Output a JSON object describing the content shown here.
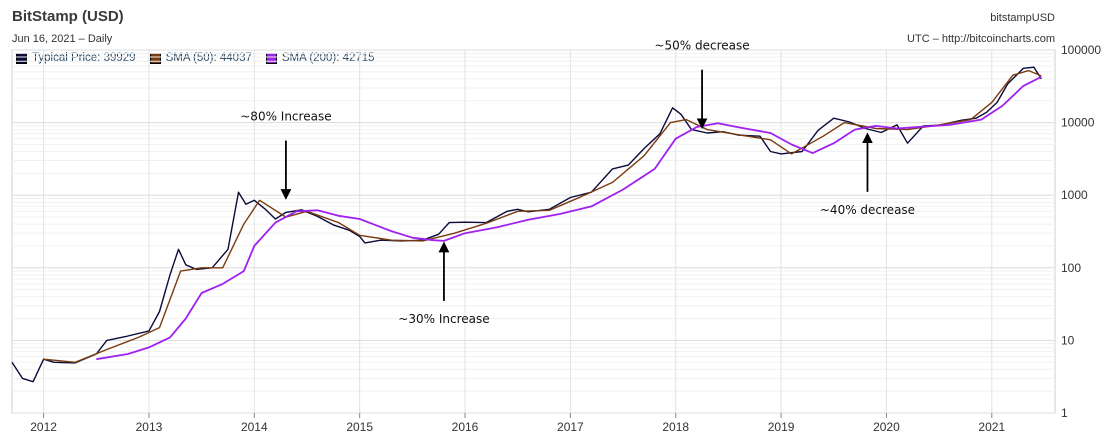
{
  "header": {
    "title": "BitStamp (USD)",
    "subtitle": "Jun 16, 2021  –  Daily",
    "source_name": "bitstampUSD",
    "source_url": "UTC – http://bitcoincharts.com"
  },
  "legend": [
    {
      "label": "Typical Price: 39929",
      "color": "#0b0b3b"
    },
    {
      "label": "SMA (50): 44037",
      "color": "#7a3a10"
    },
    {
      "label": "SMA (200): 42715",
      "color": "#a020f0"
    }
  ],
  "chart_data": {
    "type": "line",
    "title": "BitStamp (USD)",
    "y_scale": "log",
    "ylim": [
      1,
      100000
    ],
    "xlim": [
      2011.7,
      2021.6
    ],
    "y_ticks": [
      1,
      10,
      100,
      1000,
      10000,
      100000
    ],
    "y_tick_labels": [
      "1",
      "10",
      "100",
      "1000",
      "10000",
      "100000"
    ],
    "x_ticks": [
      2012,
      2013,
      2014,
      2015,
      2016,
      2017,
      2018,
      2019,
      2020,
      2021
    ],
    "x_tick_labels": [
      "2012",
      "2013",
      "2014",
      "2015",
      "2016",
      "2017",
      "2018",
      "2019",
      "2020",
      "2021"
    ],
    "grid": true,
    "series": [
      {
        "name": "Typical Price",
        "color": "#0b0b3b",
        "x": [
          2011.7,
          2011.8,
          2011.9,
          2012.0,
          2012.1,
          2012.3,
          2012.5,
          2012.6,
          2012.8,
          2013.0,
          2013.1,
          2013.2,
          2013.28,
          2013.35,
          2013.45,
          2013.6,
          2013.75,
          2013.85,
          2013.92,
          2014.0,
          2014.1,
          2014.2,
          2014.3,
          2014.45,
          2014.6,
          2014.75,
          2014.9,
          2015.0,
          2015.05,
          2015.2,
          2015.4,
          2015.6,
          2015.75,
          2015.85,
          2016.0,
          2016.2,
          2016.4,
          2016.5,
          2016.6,
          2016.8,
          2017.0,
          2017.2,
          2017.4,
          2017.55,
          2017.7,
          2017.85,
          2017.97,
          2018.05,
          2018.15,
          2018.3,
          2018.45,
          2018.6,
          2018.8,
          2018.9,
          2019.0,
          2019.2,
          2019.35,
          2019.5,
          2019.65,
          2019.8,
          2019.95,
          2020.1,
          2020.2,
          2020.35,
          2020.5,
          2020.7,
          2020.85,
          2020.95,
          2021.05,
          2021.15,
          2021.3,
          2021.4,
          2021.47
        ],
        "y": [
          5,
          3,
          2.7,
          5.5,
          5,
          4.9,
          6.5,
          10,
          11.5,
          13.5,
          25,
          80,
          180,
          110,
          95,
          100,
          180,
          1100,
          750,
          850,
          650,
          470,
          580,
          630,
          510,
          390,
          330,
          270,
          220,
          240,
          235,
          240,
          290,
          420,
          425,
          420,
          600,
          640,
          590,
          640,
          930,
          1100,
          2300,
          2600,
          4400,
          7000,
          16000,
          13000,
          8000,
          7200,
          7500,
          6700,
          6500,
          4000,
          3700,
          4000,
          7800,
          11500,
          10200,
          8300,
          7300,
          9300,
          5200,
          9000,
          9200,
          10700,
          11500,
          13800,
          19000,
          34000,
          56000,
          58000,
          39929
        ]
      },
      {
        "name": "SMA (50)",
        "color": "#7a3a10",
        "x": [
          2012.0,
          2012.3,
          2012.6,
          2012.9,
          2013.1,
          2013.3,
          2013.5,
          2013.7,
          2013.9,
          2014.05,
          2014.3,
          2014.5,
          2014.8,
          2015.0,
          2015.3,
          2015.6,
          2015.9,
          2016.2,
          2016.5,
          2016.8,
          2017.1,
          2017.4,
          2017.7,
          2017.95,
          2018.1,
          2018.3,
          2018.6,
          2018.9,
          2019.1,
          2019.4,
          2019.6,
          2019.9,
          2020.2,
          2020.5,
          2020.8,
          2021.0,
          2021.2,
          2021.35,
          2021.47
        ],
        "y": [
          5.5,
          5,
          7.5,
          11,
          15,
          90,
          100,
          100,
          400,
          850,
          500,
          600,
          420,
          280,
          240,
          235,
          300,
          410,
          600,
          620,
          950,
          1500,
          3500,
          10000,
          11000,
          8000,
          6800,
          5800,
          3700,
          6500,
          10000,
          8300,
          8000,
          9300,
          11000,
          19000,
          45000,
          52000,
          44037
        ]
      },
      {
        "name": "SMA (200)",
        "color": "#a020f0",
        "x": [
          2012.5,
          2012.8,
          2013.0,
          2013.2,
          2013.35,
          2013.5,
          2013.7,
          2013.9,
          2014.0,
          2014.2,
          2014.4,
          2014.6,
          2014.8,
          2015.0,
          2015.3,
          2015.5,
          2015.7,
          2015.8,
          2016.0,
          2016.3,
          2016.6,
          2016.9,
          2017.2,
          2017.5,
          2017.8,
          2018.0,
          2018.2,
          2018.4,
          2018.6,
          2018.9,
          2019.1,
          2019.3,
          2019.5,
          2019.7,
          2019.9,
          2020.1,
          2020.3,
          2020.6,
          2020.9,
          2021.1,
          2021.3,
          2021.47
        ],
        "y": [
          5.5,
          6.5,
          8,
          11,
          20,
          45,
          60,
          90,
          200,
          420,
          600,
          620,
          520,
          470,
          320,
          260,
          240,
          235,
          300,
          360,
          460,
          550,
          700,
          1200,
          2300,
          6000,
          8700,
          9800,
          8600,
          7200,
          5000,
          3800,
          5200,
          8000,
          9000,
          8300,
          8700,
          9300,
          11000,
          17000,
          32000,
          42715
        ]
      }
    ],
    "annotations": [
      {
        "text": "~80% Increase",
        "x": 2014.3,
        "y": 900,
        "direction": "down"
      },
      {
        "text": "~30% Increase",
        "x": 2015.8,
        "y": 220,
        "direction": "up"
      },
      {
        "text": "~50% decrease",
        "x": 2018.25,
        "y": 8500,
        "direction": "down"
      },
      {
        "text": "~40% decrease",
        "x": 2019.82,
        "y": 7000,
        "direction": "up"
      }
    ]
  }
}
